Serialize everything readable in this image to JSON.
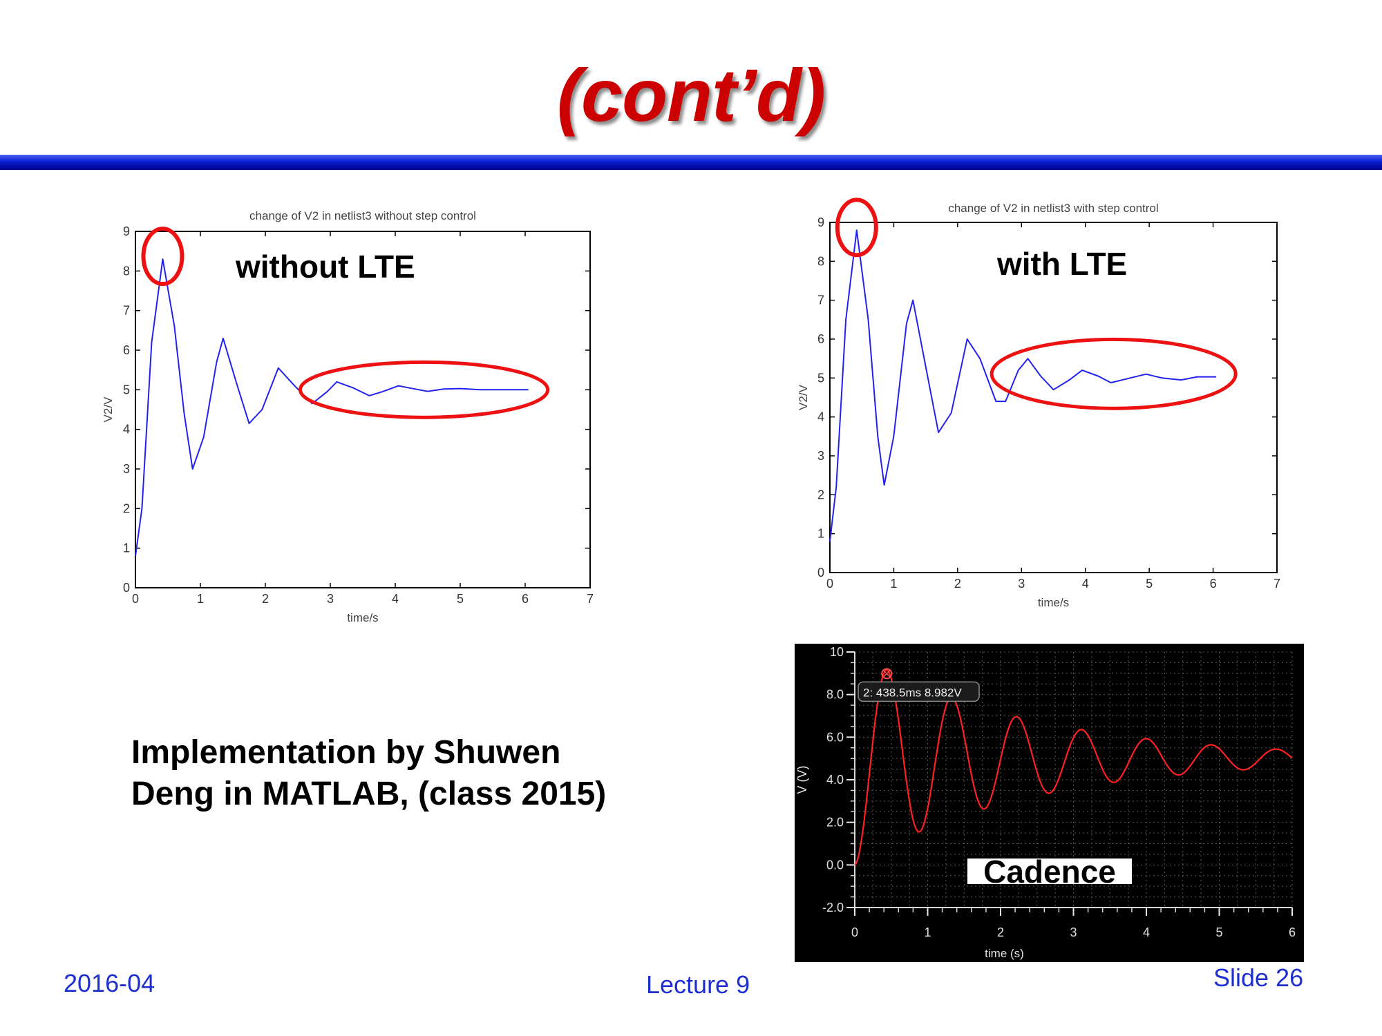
{
  "slide": {
    "title": "(cont’d)",
    "implementation_note": "Implementation by Shuwen Deng in MATLAB, (class 2015)",
    "footer": {
      "date": "2016-04",
      "lecture": "Lecture 9",
      "slide": "Slide 26"
    }
  },
  "colors": {
    "title": "#cc0000",
    "matlab_line": "#2222ee",
    "cadence_line": "#ff2020",
    "annotation_ring": "#ee1111",
    "footer": "#1e2fd0"
  },
  "chart_data": [
    {
      "id": "without",
      "type": "line",
      "title": "change of V2 in netlist3 without step control",
      "annotation": "without LTE",
      "xlabel": "time/s",
      "ylabel": "V2/V",
      "xlim": [
        0,
        7
      ],
      "ylim": [
        0,
        9
      ],
      "xticks": [
        0,
        1,
        2,
        3,
        4,
        5,
        6,
        7
      ],
      "yticks": [
        0,
        1,
        2,
        3,
        4,
        5,
        6,
        7,
        8,
        9
      ],
      "series": [
        {
          "name": "V2",
          "end": 6.05,
          "points": [
            [
              0,
              0.8
            ],
            [
              0.1,
              2.0
            ],
            [
              0.25,
              6.2
            ],
            [
              0.42,
              8.3
            ],
            [
              0.6,
              6.6
            ],
            [
              0.75,
              4.4
            ],
            [
              0.88,
              3.0
            ],
            [
              1.05,
              3.8
            ],
            [
              1.25,
              5.7
            ],
            [
              1.35,
              6.3
            ],
            [
              1.55,
              5.2
            ],
            [
              1.75,
              4.15
            ],
            [
              1.95,
              4.5
            ],
            [
              2.2,
              5.55
            ],
            [
              2.45,
              5.1
            ],
            [
              2.72,
              4.65
            ],
            [
              2.95,
              4.95
            ],
            [
              3.1,
              5.2
            ],
            [
              3.35,
              5.05
            ],
            [
              3.6,
              4.85
            ],
            [
              3.8,
              4.95
            ],
            [
              4.05,
              5.1
            ],
            [
              4.3,
              5.02
            ],
            [
              4.5,
              4.96
            ],
            [
              4.75,
              5.02
            ],
            [
              5.0,
              5.03
            ],
            [
              5.3,
              5.0
            ],
            [
              6.05,
              5.0
            ]
          ]
        }
      ],
      "highlights": [
        "peak",
        "tail"
      ]
    },
    {
      "id": "with",
      "type": "line",
      "title": "change of V2 in netlist3 with step control",
      "annotation": "with LTE",
      "xlabel": "time/s",
      "ylabel": "V2/V",
      "xlim": [
        0,
        7
      ],
      "ylim": [
        0,
        9
      ],
      "xticks": [
        0,
        1,
        2,
        3,
        4,
        5,
        6,
        7
      ],
      "yticks": [
        0,
        1,
        2,
        3,
        4,
        5,
        6,
        7,
        8,
        9
      ],
      "series": [
        {
          "name": "V2",
          "end": 6.05,
          "points": [
            [
              0,
              0.8
            ],
            [
              0.1,
              2.2
            ],
            [
              0.25,
              6.5
            ],
            [
              0.42,
              8.8
            ],
            [
              0.6,
              6.5
            ],
            [
              0.75,
              3.5
            ],
            [
              0.85,
              2.25
            ],
            [
              1.0,
              3.5
            ],
            [
              1.2,
              6.4
            ],
            [
              1.3,
              7.0
            ],
            [
              1.5,
              5.3
            ],
            [
              1.7,
              3.6
            ],
            [
              1.9,
              4.1
            ],
            [
              2.15,
              6.0
            ],
            [
              2.35,
              5.5
            ],
            [
              2.6,
              4.4
            ],
            [
              2.75,
              4.4
            ],
            [
              2.95,
              5.2
            ],
            [
              3.1,
              5.5
            ],
            [
              3.3,
              5.05
            ],
            [
              3.5,
              4.7
            ],
            [
              3.75,
              4.95
            ],
            [
              3.95,
              5.2
            ],
            [
              4.2,
              5.05
            ],
            [
              4.4,
              4.88
            ],
            [
              4.7,
              5.0
            ],
            [
              4.95,
              5.1
            ],
            [
              5.2,
              5.0
            ],
            [
              5.5,
              4.95
            ],
            [
              5.75,
              5.03
            ],
            [
              6.05,
              5.03
            ]
          ]
        }
      ],
      "highlights": [
        "peak",
        "tail"
      ]
    },
    {
      "id": "cadence",
      "type": "line",
      "title": "",
      "annotation": "Cadence",
      "xlabel": "time (s)",
      "ylabel": "V (V)",
      "xlim": [
        0,
        6
      ],
      "ylim": [
        -2,
        10
      ],
      "xticks": [
        0,
        1,
        2,
        3,
        4,
        5,
        6
      ],
      "xtick_labels": [
        "0",
        "1",
        "2",
        "3",
        "4",
        "5",
        "6"
      ],
      "yticks": [
        -2,
        0,
        2,
        4,
        6,
        8,
        10
      ],
      "ytick_labels": [
        "-2.0",
        "0.0",
        "2.0",
        "4.0",
        "6.0",
        "8.0",
        "10"
      ],
      "marker": {
        "x": 0.4385,
        "y": 8.982,
        "label": "2: 438.5ms 8.982V"
      },
      "series": [
        {
          "name": "V",
          "model": {
            "type": "damped_oscillation",
            "equilibrium": 5,
            "amplitude": 5,
            "decay": 0.42,
            "angular_freq": 7.06
          }
        }
      ]
    }
  ]
}
